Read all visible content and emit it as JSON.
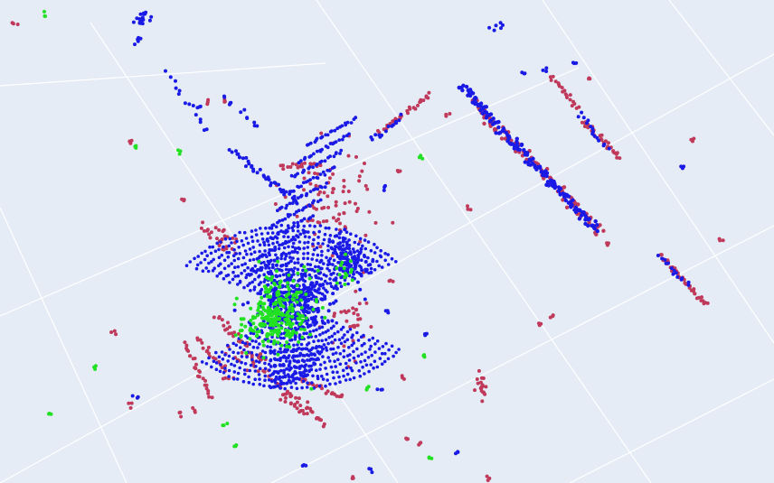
{
  "scene": {
    "background": "#e5ecf6",
    "gridline_color": "#ffffff",
    "series_colors": {
      "blue": "#1a1ae6",
      "red": "#c0395a",
      "green": "#22e022"
    }
  }
}
